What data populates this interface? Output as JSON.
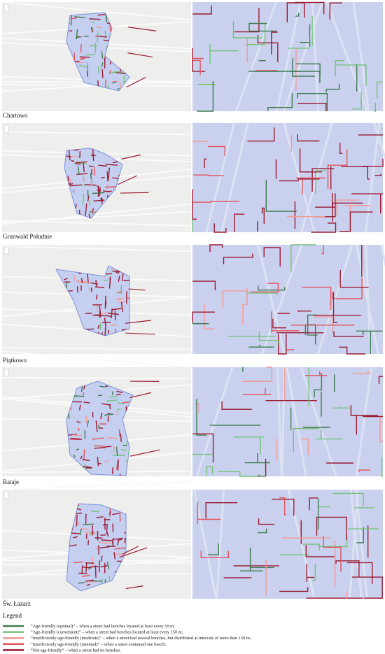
{
  "panels": [
    {
      "name": "Chartowo"
    },
    {
      "name": "Grunwald Południe"
    },
    {
      "name": "Piątkowo"
    },
    {
      "name": "Rataje"
    },
    {
      "name": "Św. Łazarz"
    }
  ],
  "legend": {
    "title": "Legend",
    "items": [
      {
        "label": "“Age-friendly (optimal)” – when a street had benches located at least every 50 m;",
        "color": "#3d7a52"
      },
      {
        "label": "“Age-friendly (convenient)” – when a street had benches located at least every 150 m;",
        "color": "#74c27a"
      },
      {
        "label": "“Insufficiently age-friendly (moderate)” – when a street had several benches, but distributed at intervals of more than 150 m;",
        "color": "#f29a96"
      },
      {
        "label": "“Insufficiently age-friendly (minimal)” – when a street contained one bench;",
        "color": "#e2535c"
      },
      {
        "label": "“Not age-friendly” – when a street had no benches.",
        "color": "#9c1a32"
      }
    ]
  }
}
